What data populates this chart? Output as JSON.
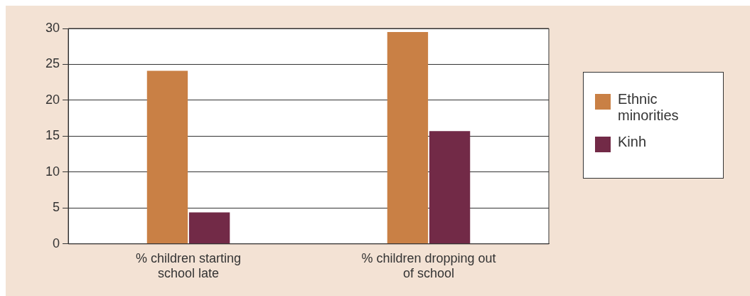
{
  "chart_data": {
    "type": "bar",
    "categories": [
      "% children starting school late",
      "% children dropping out of school"
    ],
    "series": [
      {
        "name": "Ethnic minorities",
        "color": "#c98045",
        "values": [
          24.1,
          29.5
        ]
      },
      {
        "name": "Kinh",
        "color": "#722a47",
        "values": [
          4.4,
          15.7
        ]
      }
    ],
    "ylim": [
      0,
      30
    ],
    "yticks": [
      0,
      5,
      10,
      15,
      20,
      25,
      30
    ],
    "grid": "y",
    "legend": "right"
  }
}
